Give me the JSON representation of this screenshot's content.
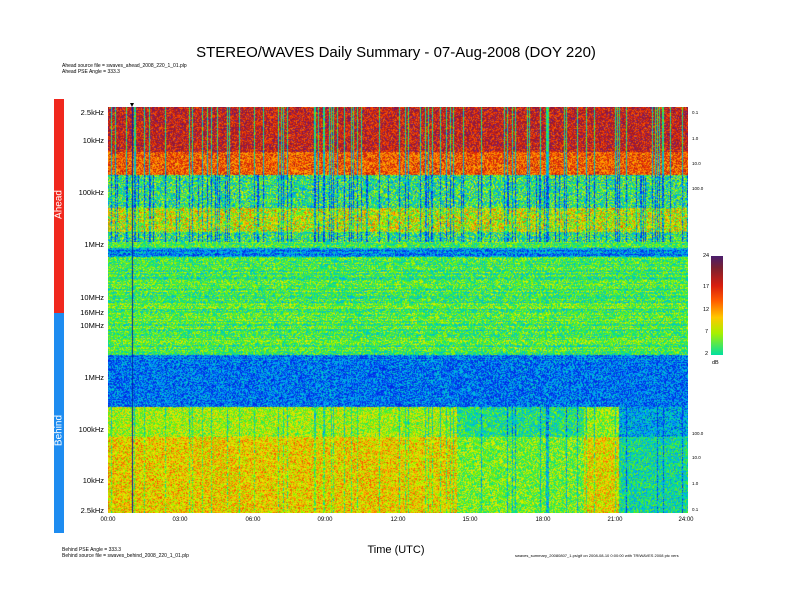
{
  "title": "STEREO/WAVES Daily Summary - 07-Aug-2008 (DOY 220)",
  "header_notes": {
    "ahead_source": "Ahead source file = swaves_ahead_2008_220_1_01.plp",
    "ahead_pse": "Ahead PSE Angle = 333.3"
  },
  "footer_notes": {
    "behind_pse": "Behind PSE Angle = 333.3",
    "behind_source": "Behind source file = swaves_behind_2008_220_1_01.plp",
    "right_note": "swaves_summary_20080807_1.ps/gif on 2008-08-10 0:00:00 with TRIWAVES 2008 ptc vers"
  },
  "panels": {
    "ahead_label": "Ahead",
    "behind_label": "Behind",
    "ahead_color": "#f0281e",
    "behind_color": "#1e8cf0"
  },
  "chart_data": {
    "type": "heatmap",
    "title": "STEREO/WAVES Daily Summary - 07-Aug-2008 (DOY 220)",
    "xlabel": "Time (UTC)",
    "x_ticks": [
      "00:00",
      "03:00",
      "06:00",
      "09:00",
      "12:00",
      "15:00",
      "18:00",
      "21:00",
      "24:00"
    ],
    "xlim_hours": [
      0,
      24
    ],
    "ahead_freq_ticks": [
      "2.5kHz",
      "10kHz",
      "100kHz",
      "1MHz",
      "10MHz",
      "16MHz"
    ],
    "behind_freq_ticks": [
      "10MHz",
      "1MHz",
      "100kHz",
      "10kHz",
      "2.5kHz"
    ],
    "ahead_right_ticks": [
      "0.1",
      "1.0",
      "10.0",
      "100.0"
    ],
    "behind_right_ticks": [
      "100.0",
      "10.0",
      "1.0",
      "0.1"
    ],
    "colorbar": {
      "ticks": [
        "24",
        "17",
        "12",
        "7",
        "2"
      ],
      "unit": "dB",
      "range": [
        2,
        24
      ]
    },
    "grid": false
  }
}
